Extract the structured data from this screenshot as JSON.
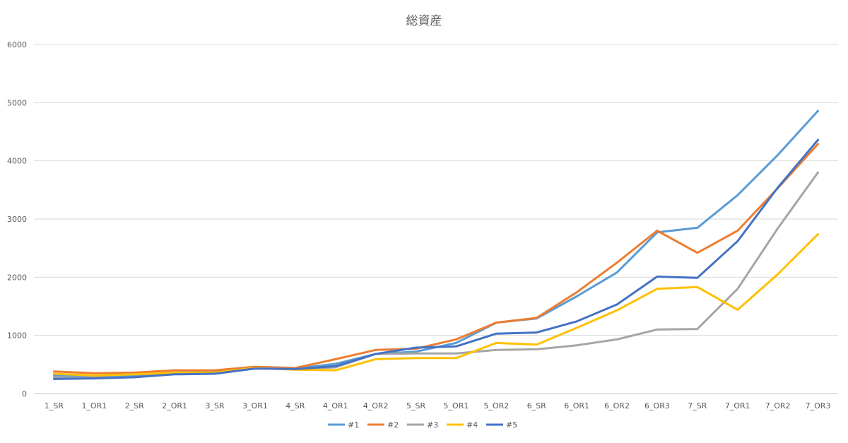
{
  "chart_data": {
    "type": "line",
    "title": "総資産",
    "xlabel": "",
    "ylabel": "",
    "ylim": [
      0,
      6000
    ],
    "yticks": [
      0,
      1000,
      2000,
      3000,
      4000,
      5000,
      6000
    ],
    "grid": true,
    "legend_position": "bottom",
    "categories": [
      "1_SR",
      "1_OR1",
      "2_SR",
      "2_OR1",
      "3_SR",
      "3_OR1",
      "4_SR",
      "4_OR1",
      "4_OR2",
      "5_SR",
      "5_OR1",
      "5_OR2",
      "6_SR",
      "6_OR1",
      "6_OR2",
      "6_OR3",
      "7_SR",
      "7_OR1",
      "7_OR2",
      "7_OR3"
    ],
    "series": [
      {
        "name": "#1",
        "color": "#5b9bd5",
        "values": [
          310,
          290,
          310,
          360,
          370,
          440,
          430,
          510,
          680,
          720,
          870,
          1220,
          1290,
          1670,
          2080,
          2770,
          2850,
          3410,
          4100,
          4860
        ]
      },
      {
        "name": "#2",
        "color": "#ed7d31",
        "values": [
          380,
          350,
          360,
          400,
          400,
          460,
          440,
          590,
          750,
          770,
          930,
          1220,
          1300,
          1740,
          2250,
          2800,
          2420,
          2800,
          3530,
          4290
        ]
      },
      {
        "name": "#3",
        "color": "#a5a5a5",
        "values": [
          280,
          270,
          280,
          340,
          350,
          440,
          420,
          450,
          680,
          690,
          690,
          750,
          760,
          830,
          930,
          1100,
          1110,
          1800,
          2840,
          3800
        ]
      },
      {
        "name": "#4",
        "color": "#ffc000",
        "values": [
          340,
          310,
          330,
          360,
          360,
          440,
          410,
          400,
          590,
          610,
          610,
          870,
          840,
          1130,
          1430,
          1800,
          1830,
          1440,
          2050,
          2740
        ]
      },
      {
        "name": "#5",
        "color": "#4472c4",
        "values": [
          250,
          260,
          280,
          330,
          340,
          430,
          420,
          470,
          680,
          790,
          810,
          1030,
          1050,
          1240,
          1530,
          2010,
          1990,
          2620,
          3540,
          4360
        ]
      }
    ]
  }
}
